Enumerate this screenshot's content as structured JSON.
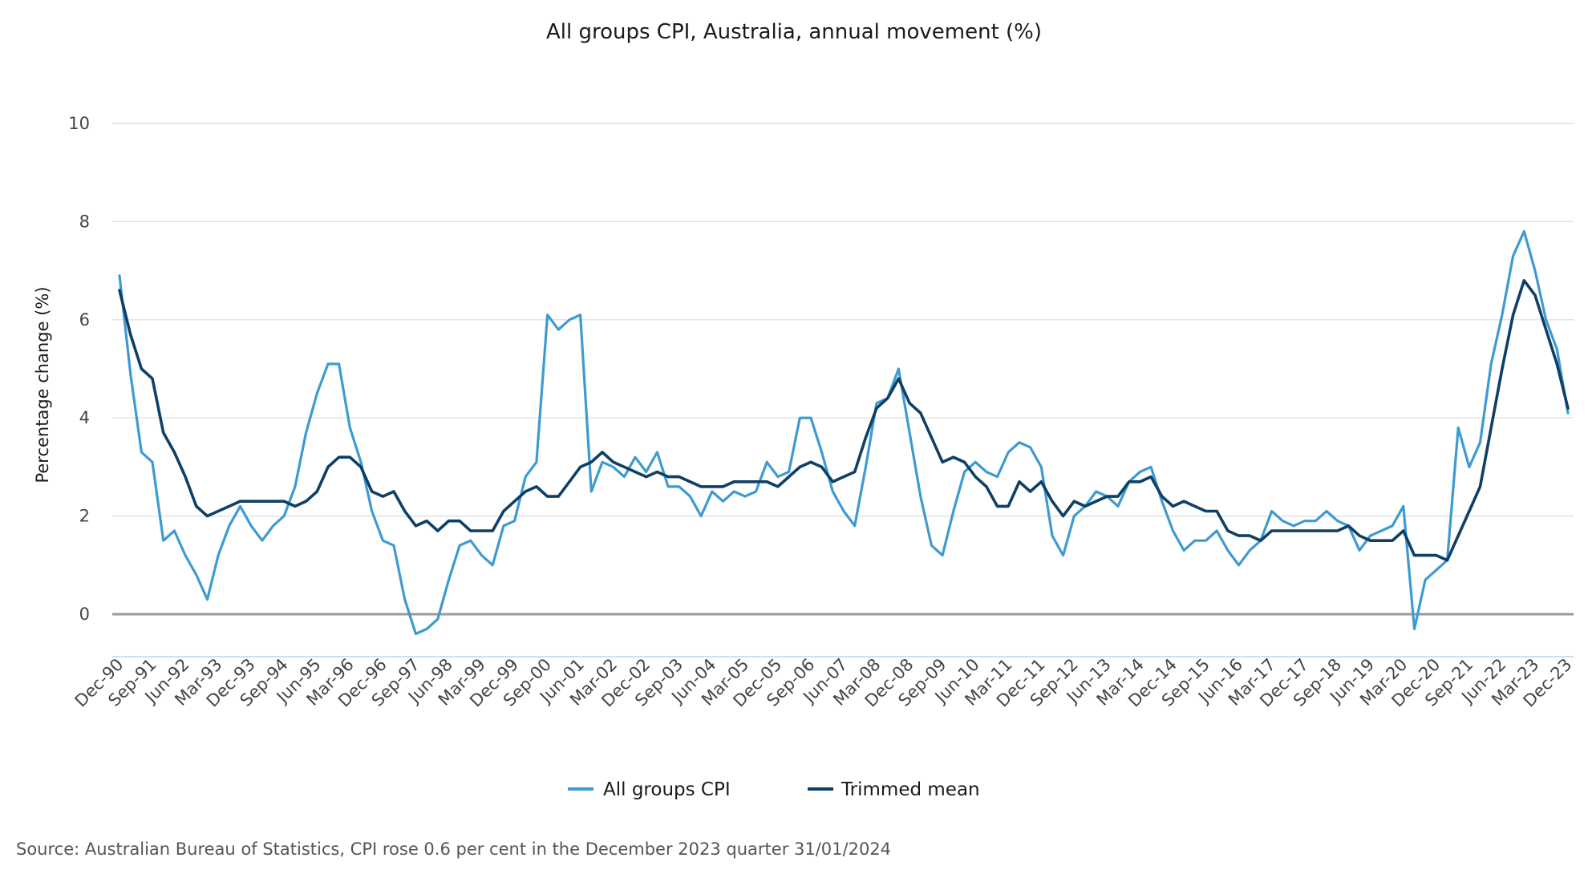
{
  "chart_data": {
    "type": "line",
    "title": "All groups CPI, Australia, annual movement (%)",
    "xlabel": "",
    "ylabel": "Percentage change (%)",
    "ylim": [
      -0.8,
      10
    ],
    "yticks": [
      0,
      2,
      4,
      6,
      8,
      10
    ],
    "grid": true,
    "legend_position": "bottom",
    "start_label": "Dec-90",
    "tick_labels": [
      "Dec-90",
      "Sep-91",
      "Jun-92",
      "Mar-93",
      "Dec-93",
      "Sep-94",
      "Jun-95",
      "Mar-96",
      "Dec-96",
      "Sep-97",
      "Jun-98",
      "Mar-99",
      "Dec-99",
      "Sep-00",
      "Jun-01",
      "Mar-02",
      "Dec-02",
      "Sep-03",
      "Jun-04",
      "Mar-05",
      "Dec-05",
      "Sep-06",
      "Jun-07",
      "Mar-08",
      "Dec-08",
      "Sep-09",
      "Jun-10",
      "Mar-11",
      "Dec-11",
      "Sep-12",
      "Jun-13",
      "Mar-14",
      "Dec-14",
      "Sep-15",
      "Jun-16",
      "Mar-17",
      "Dec-17",
      "Sep-18",
      "Jun-19",
      "Mar-20",
      "Dec-20",
      "Sep-21",
      "Jun-22",
      "Mar-23",
      "Dec-23"
    ],
    "colors": {
      "cpi": "#3d9bd1",
      "trimmed": "#0e3f66",
      "gridline": "#dcdcdc",
      "zeroline": "#9a9a9a"
    },
    "series": [
      {
        "name": "All groups CPI",
        "color": "#3d9bd1",
        "values": [
          6.9,
          4.9,
          3.3,
          3.1,
          1.5,
          1.7,
          1.2,
          0.8,
          0.3,
          1.2,
          1.8,
          2.2,
          1.8,
          1.5,
          1.8,
          2.0,
          2.6,
          3.7,
          4.5,
          5.1,
          5.1,
          3.8,
          3.1,
          2.1,
          1.5,
          1.4,
          0.3,
          -0.4,
          -0.3,
          -0.1,
          0.7,
          1.4,
          1.5,
          1.2,
          1.0,
          1.8,
          1.9,
          2.8,
          3.1,
          6.1,
          5.8,
          6.0,
          6.1,
          2.5,
          3.1,
          3.0,
          2.8,
          3.2,
          2.9,
          3.3,
          2.6,
          2.6,
          2.4,
          2.0,
          2.5,
          2.3,
          2.5,
          2.4,
          2.5,
          3.1,
          2.8,
          2.9,
          4.0,
          4.0,
          3.3,
          2.5,
          2.1,
          1.8,
          3.0,
          4.3,
          4.4,
          5.0,
          3.7,
          2.4,
          1.4,
          1.2,
          2.1,
          2.9,
          3.1,
          2.9,
          2.8,
          3.3,
          3.5,
          3.4,
          3.0,
          1.6,
          1.2,
          2.0,
          2.2,
          2.5,
          2.4,
          2.2,
          2.7,
          2.9,
          3.0,
          2.3,
          1.7,
          1.3,
          1.5,
          1.5,
          1.7,
          1.3,
          1.0,
          1.3,
          1.5,
          2.1,
          1.9,
          1.8,
          1.9,
          1.9,
          2.1,
          1.9,
          1.8,
          1.3,
          1.6,
          1.7,
          1.8,
          2.2,
          -0.3,
          0.7,
          0.9,
          1.1,
          3.8,
          3.0,
          3.5,
          5.1,
          6.1,
          7.3,
          7.8,
          7.0,
          6.0,
          5.4,
          4.1
        ]
      },
      {
        "name": "Trimmed mean",
        "color": "#0e3f66",
        "values": [
          6.6,
          5.7,
          5.0,
          4.8,
          3.7,
          3.3,
          2.8,
          2.2,
          2.0,
          2.1,
          2.2,
          2.3,
          2.3,
          2.3,
          2.3,
          2.3,
          2.2,
          2.3,
          2.5,
          3.0,
          3.2,
          3.2,
          3.0,
          2.5,
          2.4,
          2.5,
          2.1,
          1.8,
          1.9,
          1.7,
          1.9,
          1.9,
          1.7,
          1.7,
          1.7,
          2.1,
          2.3,
          2.5,
          2.6,
          2.4,
          2.4,
          2.7,
          3.0,
          3.1,
          3.3,
          3.1,
          3.0,
          2.9,
          2.8,
          2.9,
          2.8,
          2.8,
          2.7,
          2.6,
          2.6,
          2.6,
          2.7,
          2.7,
          2.7,
          2.7,
          2.6,
          2.8,
          3.0,
          3.1,
          3.0,
          2.7,
          2.8,
          2.9,
          3.6,
          4.2,
          4.4,
          4.8,
          4.3,
          4.1,
          3.6,
          3.1,
          3.2,
          3.1,
          2.8,
          2.6,
          2.2,
          2.2,
          2.7,
          2.5,
          2.7,
          2.3,
          2.0,
          2.3,
          2.2,
          2.3,
          2.4,
          2.4,
          2.7,
          2.7,
          2.8,
          2.4,
          2.2,
          2.3,
          2.2,
          2.1,
          2.1,
          1.7,
          1.6,
          1.6,
          1.5,
          1.7,
          1.7,
          1.7,
          1.7,
          1.7,
          1.7,
          1.7,
          1.8,
          1.6,
          1.5,
          1.5,
          1.5,
          1.7,
          1.2,
          1.2,
          1.2,
          1.1,
          1.6,
          2.1,
          2.6,
          3.8,
          5.0,
          6.1,
          6.8,
          6.5,
          5.8,
          5.1,
          4.2
        ]
      }
    ]
  },
  "source": "Source: Australian Bureau of Statistics, CPI rose 0.6 per cent in the December 2023 quarter 31/01/2024"
}
